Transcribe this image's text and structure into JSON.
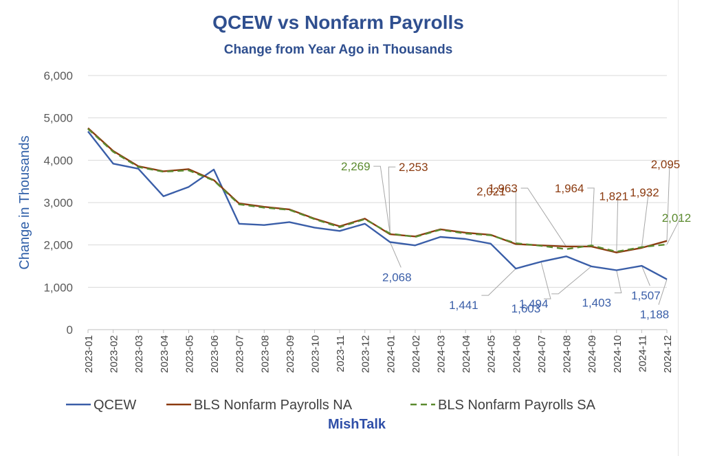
{
  "chart_data": {
    "type": "line",
    "title": "QCEW vs Nonfarm Payrolls",
    "subtitle": "Change from Year Ago in Thousands",
    "ylabel": "Change in Thousands",
    "xlabel": "",
    "ylim": [
      0,
      6000
    ],
    "yticks": [
      "0",
      "1,000",
      "2,000",
      "3,000",
      "4,000",
      "5,000",
      "6,000"
    ],
    "grid": true,
    "legend_position": "bottom",
    "watermark": "MishTalk",
    "categories": [
      "2023-01",
      "2023-02",
      "2023-03",
      "2023-04",
      "2023-05",
      "2023-06",
      "2023-07",
      "2023-08",
      "2023-09",
      "2023-10",
      "2023-11",
      "2023-12",
      "2024-01",
      "2024-02",
      "2024-03",
      "2024-04",
      "2024-05",
      "2024-06",
      "2024-07",
      "2024-08",
      "2024-09",
      "2024-10",
      "2024-11",
      "2024-12"
    ],
    "series": [
      {
        "name": "QCEW",
        "color": "#3a5ea8",
        "dash": "solid",
        "values": [
          4680,
          3920,
          3800,
          3150,
          3370,
          3780,
          2500,
          2470,
          2540,
          2410,
          2330,
          2500,
          2068,
          1990,
          2190,
          2140,
          2030,
          1441,
          1603,
          1730,
          1494,
          1403,
          1507,
          1188
        ]
      },
      {
        "name": "BLS Nonfarm Payrolls NA",
        "color": "#8b3a0f",
        "dash": "solid",
        "values": [
          4760,
          4220,
          3860,
          3740,
          3790,
          3530,
          2980,
          2900,
          2840,
          2620,
          2440,
          2620,
          2253,
          2200,
          2370,
          2290,
          2240,
          2021,
          1990,
          1963,
          1964,
          1821,
          1932,
          2095
        ]
      },
      {
        "name": "BLS Nonfarm Payrolls SA",
        "color": "#5b8a2e",
        "dash": "dashed",
        "values": [
          4740,
          4200,
          3840,
          3730,
          3760,
          3520,
          2960,
          2880,
          2830,
          2610,
          2420,
          2610,
          2269,
          2190,
          2360,
          2270,
          2230,
          2040,
          1980,
          1900,
          1990,
          1840,
          1950,
          2012
        ]
      }
    ],
    "annotations": [
      {
        "text": "2,269",
        "series": 2,
        "index": 12
      },
      {
        "text": "2,253",
        "series": 1,
        "index": 12
      },
      {
        "text": "2,068",
        "series": 0,
        "index": 12
      },
      {
        "text": "2,021",
        "series": 1,
        "index": 17
      },
      {
        "text": "1,963",
        "series": 1,
        "index": 19
      },
      {
        "text": "1,964",
        "series": 1,
        "index": 20
      },
      {
        "text": "1,821",
        "series": 1,
        "index": 21
      },
      {
        "text": "1,932",
        "series": 1,
        "index": 22
      },
      {
        "text": "2,095",
        "series": 1,
        "index": 23
      },
      {
        "text": "2,012",
        "series": 2,
        "index": 23
      },
      {
        "text": "1,441",
        "series": 0,
        "index": 17
      },
      {
        "text": "1,603",
        "series": 0,
        "index": 18
      },
      {
        "text": "1,494",
        "series": 0,
        "index": 20
      },
      {
        "text": "1,403",
        "series": 0,
        "index": 21
      },
      {
        "text": "1,507",
        "series": 0,
        "index": 22
      },
      {
        "text": "1,188",
        "series": 0,
        "index": 23
      }
    ]
  }
}
